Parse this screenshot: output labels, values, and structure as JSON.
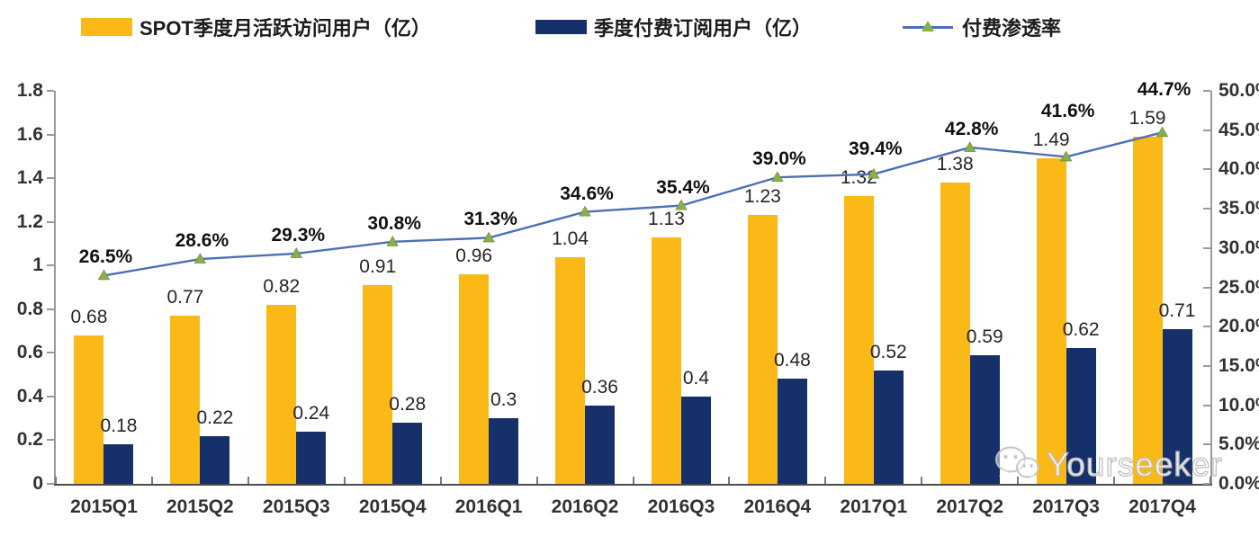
{
  "legend": {
    "mau": {
      "label": "SPOT季度月活跃访问用户（亿）",
      "color": "#FBB917"
    },
    "subs": {
      "label": "季度付费订阅用户（亿）",
      "color": "#16306A"
    },
    "penetration": {
      "label": "付费渗透率",
      "line_color": "#4D6FB8",
      "marker_color": "#8CAF4C"
    }
  },
  "watermark": {
    "text": "Yourseeker",
    "icon": "wechat-icon"
  },
  "chart_data": {
    "type": "bar",
    "subtype": "combo-dual-axis",
    "title": "",
    "categories": [
      "2015Q1",
      "2015Q2",
      "2015Q3",
      "2015Q4",
      "2016Q1",
      "2016Q2",
      "2016Q3",
      "2016Q4",
      "2017Q1",
      "2017Q2",
      "2017Q3",
      "2017Q4"
    ],
    "series": [
      {
        "name": "SPOT季度月活跃访问用户（亿）",
        "type": "bar",
        "axis": "left",
        "color": "#FBB917",
        "values": [
          0.68,
          0.77,
          0.82,
          0.91,
          0.96,
          1.04,
          1.13,
          1.23,
          1.32,
          1.38,
          1.49,
          1.59
        ],
        "labels": [
          "0.68",
          "0.77",
          "0.82",
          "0.91",
          "0.96",
          "1.04",
          "1.13",
          "1.23",
          "1.32",
          "1.38",
          "1.49",
          "1.59"
        ]
      },
      {
        "name": "季度付费订阅用户（亿）",
        "type": "bar",
        "axis": "left",
        "color": "#16306A",
        "values": [
          0.18,
          0.22,
          0.24,
          0.28,
          0.3,
          0.36,
          0.4,
          0.48,
          0.52,
          0.59,
          0.62,
          0.71
        ],
        "labels": [
          "0.18",
          "0.22",
          "0.24",
          "0.28",
          "0.3",
          "0.36",
          "0.4",
          "0.48",
          "0.52",
          "0.59",
          "0.62",
          "0.71"
        ]
      },
      {
        "name": "付费渗透率",
        "type": "line",
        "axis": "right",
        "color": "#4D6FB8",
        "marker": "triangle",
        "marker_color": "#8CAF4C",
        "values": [
          26.5,
          28.6,
          29.3,
          30.8,
          31.3,
          34.6,
          35.4,
          39.0,
          39.4,
          42.8,
          41.6,
          44.7
        ],
        "labels": [
          "26.5%",
          "28.6%",
          "29.3%",
          "30.8%",
          "31.3%",
          "34.6%",
          "35.4%",
          "39.0%",
          "39.4%",
          "42.8%",
          "41.6%",
          "44.7%"
        ]
      }
    ],
    "left_axis": {
      "ticks": [
        "0",
        "0.2",
        "0.4",
        "0.6",
        "0.8",
        "1",
        "1.2",
        "1.4",
        "1.6",
        "1.8"
      ],
      "min": 0,
      "max": 1.8
    },
    "right_axis": {
      "ticks": [
        "0.0%",
        "5.0%",
        "10.0%",
        "15.0%",
        "20.0%",
        "25.0%",
        "30.0%",
        "35.0%",
        "40.0%",
        "45.0%",
        "50.0%"
      ],
      "min": 0,
      "max": 50
    },
    "grid": false,
    "legend_position": "top"
  }
}
